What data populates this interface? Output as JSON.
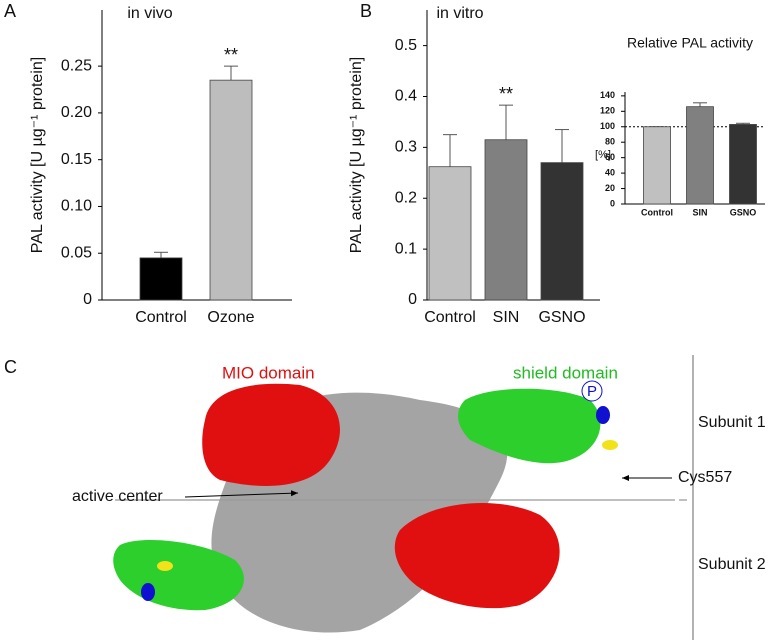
{
  "chart_data": [
    {
      "type": "bar",
      "label": "A",
      "title": "in vivo",
      "y_label": "PAL activity [U µg⁻¹ protein]",
      "categories": [
        "Control",
        "Ozone"
      ],
      "values": [
        0.045,
        0.235
      ],
      "errors": [
        0.006,
        0.015
      ],
      "value_annotations": [
        null,
        "**"
      ],
      "colors": [
        "#000000",
        "#bdbdbd"
      ],
      "ylim": [
        0,
        0.31
      ],
      "yticks": [
        0,
        0.05,
        {
          "value": 0.1,
          "label": "0.10"
        },
        {
          "value": 0.15,
          "label": "0.15"
        },
        {
          "value": 0.2,
          "label": "0.20"
        },
        0.25
      ]
    },
    {
      "type": "bar",
      "label": "B",
      "title": "in vitro",
      "y_label": "PAL activity [U µg⁻¹ protein]",
      "categories": [
        "Control",
        "SIN",
        "GSNO"
      ],
      "values": [
        0.262,
        0.315,
        0.27
      ],
      "errors": [
        0.063,
        0.068,
        0.065
      ],
      "value_annotations": [
        null,
        "**",
        null
      ],
      "colors": [
        "#c0c0c0",
        "#808080",
        "#333333"
      ],
      "ylim": [
        0,
        0.57
      ],
      "yticks": [
        0,
        0.1,
        0.2,
        0.3,
        0.4,
        0.5
      ]
    },
    {
      "type": "bar",
      "title": "Relative PAL activity",
      "y_label": "[%]",
      "categories": [
        "Control",
        "SIN",
        "GSNO"
      ],
      "values": [
        100,
        126,
        103
      ],
      "errors": [
        0,
        5,
        1.5
      ],
      "colors": [
        "#c0c0c0",
        "#808080",
        "#333333"
      ],
      "reference_line": 100,
      "ylim": [
        0,
        145
      ],
      "yticks": [
        0,
        20,
        40,
        60,
        80,
        100,
        120,
        140
      ]
    }
  ],
  "diagram": {
    "label": "C",
    "mio": "MIO domain",
    "shield": "shield domain",
    "phospho": "P",
    "subunit1": "Subunit 1",
    "subunit2": "Subunit 2",
    "active_center": "active center",
    "cys": "Cys557"
  }
}
